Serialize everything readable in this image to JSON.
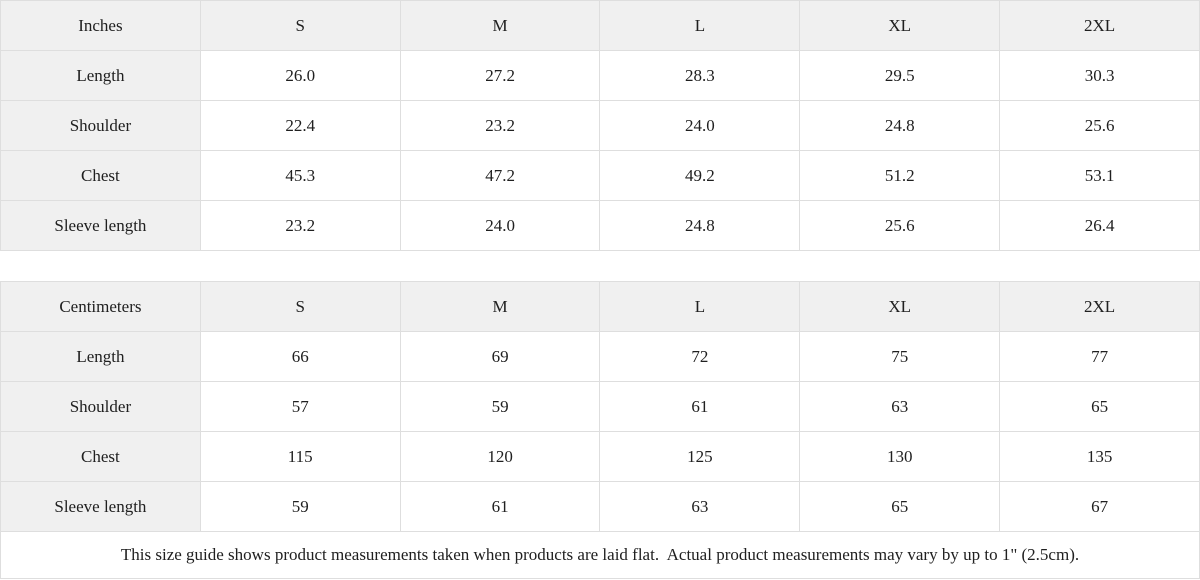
{
  "colors": {
    "label_background": "#f0f0f0",
    "cell_background": "#ffffff",
    "border": "#dedede",
    "text": "#202020"
  },
  "tables": [
    {
      "unit_label": "Inches",
      "sizes": [
        "S",
        "M",
        "L",
        "XL",
        "2XL"
      ],
      "rows": [
        {
          "label": "Length",
          "values": [
            "26.0",
            "27.2",
            "28.3",
            "29.5",
            "30.3"
          ]
        },
        {
          "label": "Shoulder",
          "values": [
            "22.4",
            "23.2",
            "24.0",
            "24.8",
            "25.6"
          ]
        },
        {
          "label": "Chest",
          "values": [
            "45.3",
            "47.2",
            "49.2",
            "51.2",
            "53.1"
          ]
        },
        {
          "label": "Sleeve length",
          "values": [
            "23.2",
            "24.0",
            "24.8",
            "25.6",
            "26.4"
          ]
        }
      ]
    },
    {
      "unit_label": "Centimeters",
      "sizes": [
        "S",
        "M",
        "L",
        "XL",
        "2XL"
      ],
      "rows": [
        {
          "label": "Length",
          "values": [
            "66",
            "69",
            "72",
            "75",
            "77"
          ]
        },
        {
          "label": "Shoulder",
          "values": [
            "57",
            "59",
            "61",
            "63",
            "65"
          ]
        },
        {
          "label": "Chest",
          "values": [
            "115",
            "120",
            "125",
            "130",
            "135"
          ]
        },
        {
          "label": "Sleeve length",
          "values": [
            "59",
            "61",
            "63",
            "65",
            "67"
          ]
        }
      ]
    }
  ],
  "footer": {
    "note": "This size guide shows product measurements taken when products are laid flat.  Actual product measurements may vary by up to 1\" (2.5cm)."
  }
}
